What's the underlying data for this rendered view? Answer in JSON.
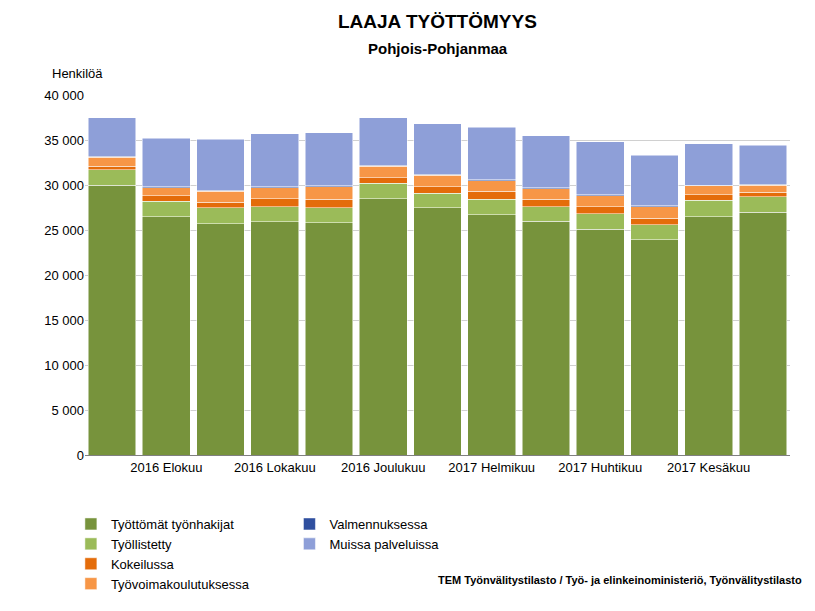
{
  "chart_data": {
    "type": "bar",
    "stacked": true,
    "title": "LAAJA TYÖTTÖMYYS",
    "subtitle": "Pohjois-Pohjanmaa",
    "y_label": "Henkilöä",
    "source": "TEM Työnvälitystilasto / Työ- ja elinkeinoministeriö, Työnvälitystilasto",
    "categories": [
      null,
      "2016 Elokuu",
      null,
      "2016 Lokakuu",
      null,
      "2016 Joulukuu",
      null,
      "2017 Helmikuu",
      null,
      "2017 Huhtikuu",
      null,
      "2017 Kesäkuu",
      null
    ],
    "series": [
      {
        "name": "Työttömät työnhakijat",
        "color": "#77933c",
        "values": [
          30000,
          26500,
          25700,
          25900,
          25800,
          28500,
          27500,
          26700,
          26000,
          25100,
          23900,
          26500,
          27000
        ]
      },
      {
        "name": "Työllistetty",
        "color": "#9bbb59",
        "values": [
          1700,
          1700,
          1800,
          1700,
          1700,
          1700,
          1600,
          1700,
          1600,
          1700,
          1700,
          1800,
          1700
        ]
      },
      {
        "name": "Kokeilussa",
        "color": "#e46c0a",
        "values": [
          400,
          600,
          600,
          900,
          900,
          600,
          700,
          900,
          800,
          800,
          700,
          600,
          500
        ]
      },
      {
        "name": "Työvoimakoulutuksessa",
        "color": "#f79646",
        "values": [
          1000,
          900,
          1200,
          1200,
          1400,
          1300,
          1300,
          1200,
          1200,
          1200,
          1300,
          1000,
          800
        ]
      },
      {
        "name": "Valmennuksessa",
        "color": "#2f4f9f",
        "values": [
          100,
          100,
          100,
          100,
          100,
          100,
          100,
          100,
          100,
          100,
          100,
          100,
          100
        ]
      },
      {
        "name": "Muissa palveluissa",
        "color": "#8e9fd8",
        "values": [
          4300,
          5400,
          5700,
          5900,
          5900,
          5300,
          5600,
          5800,
          5800,
          5900,
          5600,
          4600,
          4300
        ]
      }
    ],
    "ylim": [
      0,
      40000
    ],
    "yticks": [
      0,
      {
        "value": 5000,
        "label": "5 000"
      },
      {
        "value": 10000,
        "label": "10 000"
      },
      {
        "value": 15000,
        "label": "15 000"
      },
      {
        "value": 20000,
        "label": "20 000"
      },
      {
        "value": 25000,
        "label": "25 000"
      },
      {
        "value": 30000,
        "label": "30 000"
      },
      {
        "value": 35000,
        "label": "35 000"
      },
      {
        "value": 40000,
        "label": "40 000"
      }
    ],
    "grid": true
  }
}
